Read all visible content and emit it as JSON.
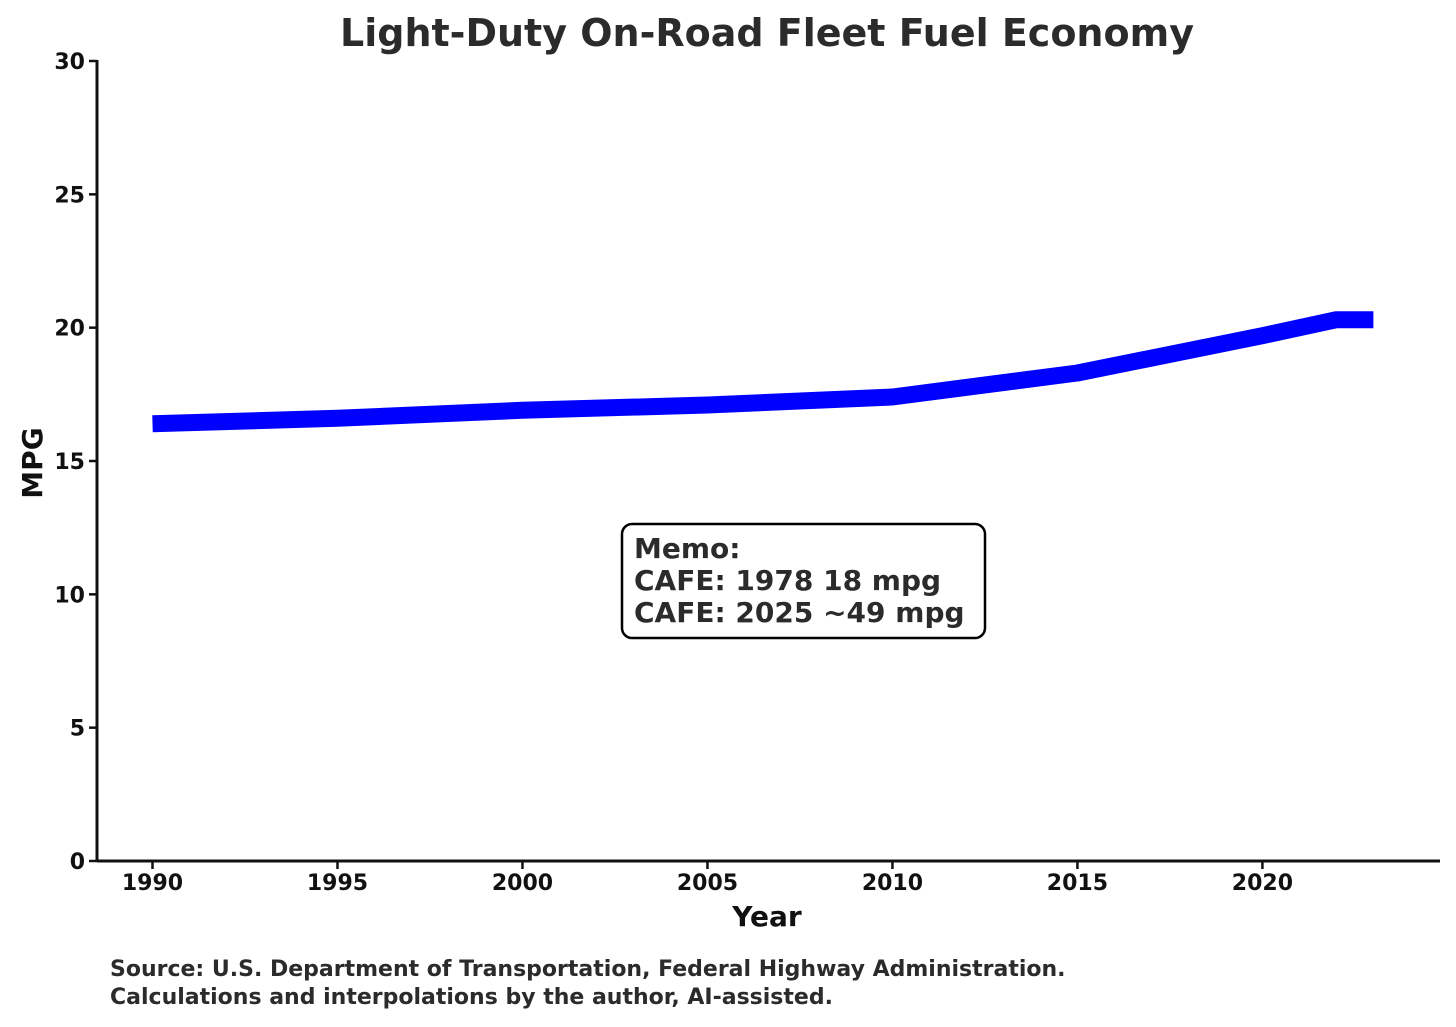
{
  "chart_data": {
    "type": "line",
    "title": "Light-Duty On-Road Fleet Fuel Economy",
    "xlabel": "Year",
    "ylabel": "MPG",
    "xlim": [
      1988.5,
      2024.8
    ],
    "ylim": [
      0,
      30
    ],
    "x_ticks": [
      1990,
      1995,
      2000,
      2005,
      2010,
      2015,
      2020
    ],
    "y_ticks": [
      0,
      5,
      10,
      15,
      20,
      25,
      30
    ],
    "grid": false,
    "series": [
      {
        "name": "Light-Duty On-Road Fleet MPG",
        "color": "#0000ff",
        "x": [
          1990,
          1995,
          2000,
          2005,
          2010,
          2015,
          2020,
          2022,
          2023
        ],
        "y": [
          16.4,
          16.6,
          16.9,
          17.1,
          17.4,
          18.3,
          19.7,
          20.3,
          20.3
        ]
      }
    ],
    "annotation": {
      "lines": [
        "Memo:",
        "CAFE: 1978 18 mpg",
        "CAFE: 2025 ~49 mpg"
      ]
    },
    "source_note": [
      "Source: U.S. Department of Transportation, Federal Highway Administration.",
      "Calculations and interpolations by the author, AI-assisted."
    ]
  }
}
